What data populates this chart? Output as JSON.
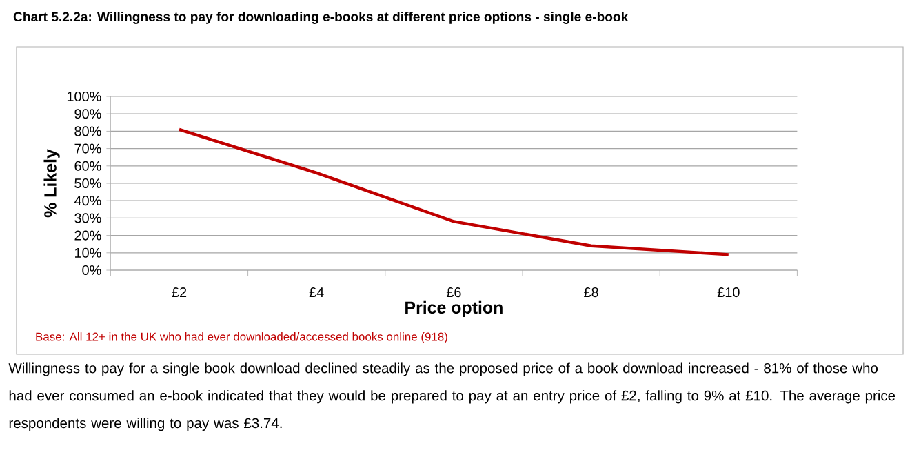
{
  "chart_data": {
    "type": "line",
    "title": "Chart 5.2.2a: Willingness to pay for downloading e-books at different price options - single e-book",
    "xlabel": "Price option",
    "ylabel": "% Likely",
    "categories": [
      "£2",
      "£4",
      "£6",
      "£8",
      "£10"
    ],
    "series": [
      {
        "color": "#c00000",
        "values": [
          81,
          56,
          28,
          14,
          9
        ]
      }
    ],
    "ylim": [
      0,
      100
    ],
    "yticks": [
      {
        "value": 0,
        "label": "0%"
      },
      {
        "value": 10,
        "label": "10%"
      },
      {
        "value": 20,
        "label": "20%"
      },
      {
        "value": 30,
        "label": "30%"
      },
      {
        "value": 40,
        "label": "40%"
      },
      {
        "value": 50,
        "label": "50%"
      },
      {
        "value": 60,
        "label": "60%"
      },
      {
        "value": 70,
        "label": "70%"
      },
      {
        "value": 80,
        "label": "80%"
      },
      {
        "value": 90,
        "label": "90%"
      },
      {
        "value": 100,
        "label": "100%"
      }
    ],
    "grid": "y",
    "legend": false,
    "marker": "none",
    "line_style": "solid",
    "annotations": [
      "Base: All 12+ in the UK who had ever downloaded/accessed books online  (918)",
      "Willingness to pay for a single book download declined steadily as the proposed price of a book download increased - 81% of those who had ever consumed an e-book indicated that they would be prepared to pay at an entry price of £2, falling to 9% at £10. The average price respondents were willing to pay was £3.74."
    ]
  }
}
